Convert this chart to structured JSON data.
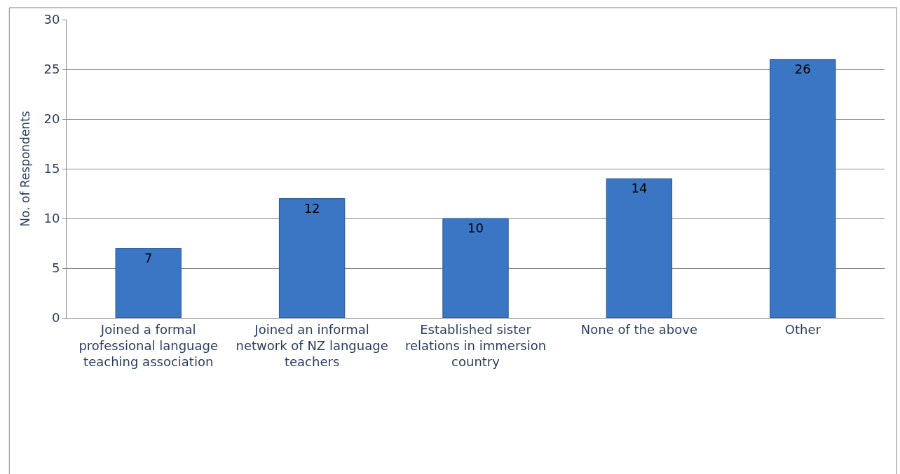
{
  "chart_data": {
    "type": "bar",
    "ylabel": "No. of Respondents",
    "categories": [
      "Joined a formal professional language teaching association",
      "Joined an informal network of NZ language teachers",
      "Established sister relations in immersion country",
      "None of the above",
      "Other"
    ],
    "values": [
      7,
      12,
      10,
      14,
      26
    ],
    "color": "#3b76c4",
    "ylim": [
      0,
      30
    ],
    "yticks": [
      0,
      5,
      10,
      15,
      20,
      25,
      30
    ],
    "grid": "y",
    "data_labels": true,
    "legend": false
  }
}
